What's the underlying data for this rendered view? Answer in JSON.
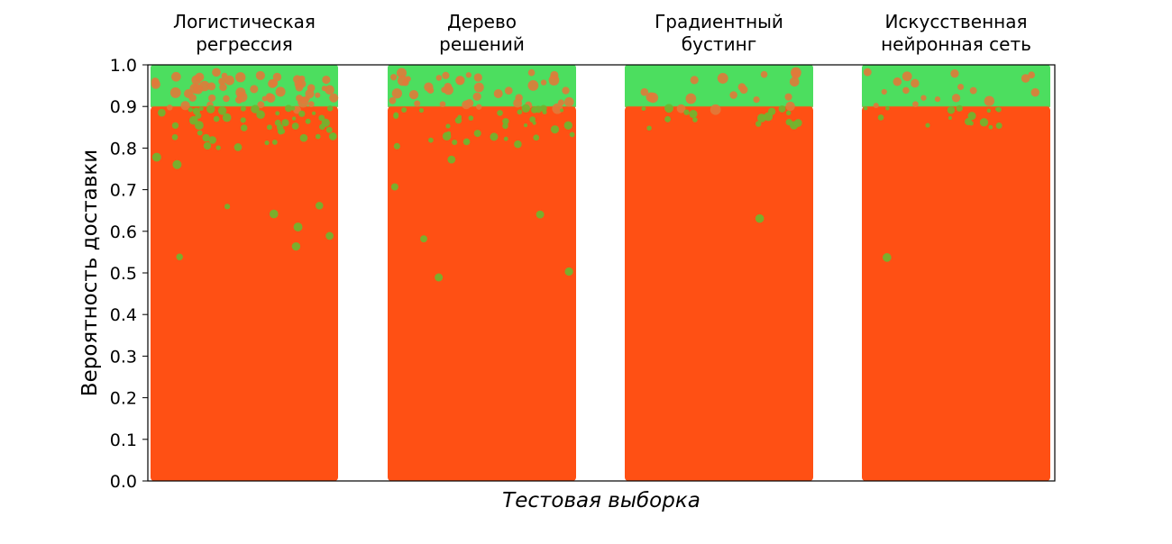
{
  "chart_data": {
    "type": "scatter",
    "title": "",
    "xlabel": "Тестовая выборка",
    "ylabel": "Вероятность доставки",
    "ylim": [
      0.0,
      1.0
    ],
    "yticks": [
      "0.0",
      "0.1",
      "0.2",
      "0.3",
      "0.4",
      "0.5",
      "0.6",
      "0.7",
      "0.8",
      "0.9",
      "1.0"
    ],
    "grid": false,
    "threshold": 0.9,
    "colors": {
      "predicted_delivered": "#4cde5f",
      "predicted_not_delivered": "#ff5014",
      "misclassified_green": "#6cb830",
      "misclassified_orange": "#e07a3a"
    },
    "groups": [
      {
        "label_lines": [
          "Логистическая",
          "регрессия"
        ],
        "label": "Логистическая регрессия",
        "upper_range": [
          0.9,
          1.0
        ],
        "lower_range": [
          0.0,
          0.9
        ],
        "scatter_intensity": "high"
      },
      {
        "label_lines": [
          "Дерево",
          "решений"
        ],
        "label": "Дерево решений",
        "upper_range": [
          0.9,
          1.0
        ],
        "lower_range": [
          0.0,
          0.9
        ],
        "scatter_intensity": "medium"
      },
      {
        "label_lines": [
          "Градиентный",
          "бустинг"
        ],
        "label": "Градиентный бустинг",
        "upper_range": [
          0.9,
          1.0
        ],
        "lower_range": [
          0.0,
          0.9
        ],
        "scatter_intensity": "low"
      },
      {
        "label_lines": [
          "Искусственная",
          "нейронная сеть"
        ],
        "label": "Искусственная нейронная сеть",
        "upper_range": [
          0.9,
          1.0
        ],
        "lower_range": [
          0.0,
          0.9
        ],
        "scatter_intensity": "low"
      }
    ]
  }
}
